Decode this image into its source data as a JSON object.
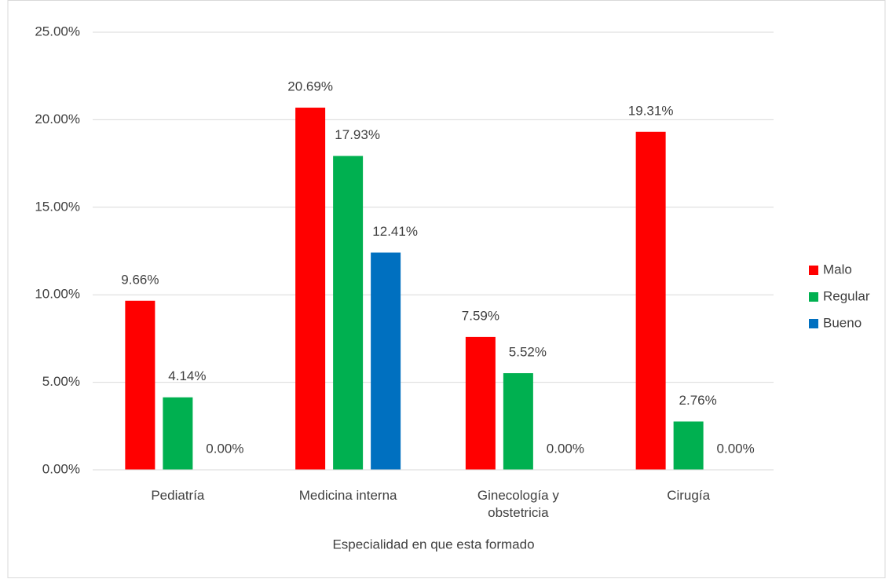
{
  "chart_data": {
    "type": "bar",
    "categories": [
      "Pediatría",
      "Medicina interna",
      "Ginecología y obstetricia",
      "Cirugía"
    ],
    "series": [
      {
        "name": "Malo",
        "color": "#ff0000",
        "values": [
          9.66,
          20.69,
          7.59,
          19.31
        ],
        "value_labels": [
          "9.66%",
          "20.69%",
          "7.59%",
          "19.31%"
        ]
      },
      {
        "name": "Regular",
        "color": "#00b050",
        "values": [
          4.14,
          17.93,
          5.52,
          2.76
        ],
        "value_labels": [
          "4.14%",
          "17.93%",
          "5.52%",
          "2.76%"
        ]
      },
      {
        "name": "Bueno",
        "color": "#0070c0",
        "values": [
          0,
          12.41,
          0,
          0
        ],
        "value_labels": [
          "0.00%",
          "12.41%",
          "0.00%",
          "0.00%"
        ]
      }
    ],
    "xlabel": "Especialidad en que esta formado",
    "ylim": [
      0,
      25
    ],
    "yticks": [
      {
        "value": 0,
        "label": "0.00%"
      },
      {
        "value": 5,
        "label": "5.00%"
      },
      {
        "value": 10,
        "label": "10.00%"
      },
      {
        "value": 15,
        "label": "15.00%"
      },
      {
        "value": 20,
        "label": "20.00%"
      },
      {
        "value": 25,
        "label": "25.00%"
      }
    ],
    "grid": true,
    "legend": "right"
  }
}
